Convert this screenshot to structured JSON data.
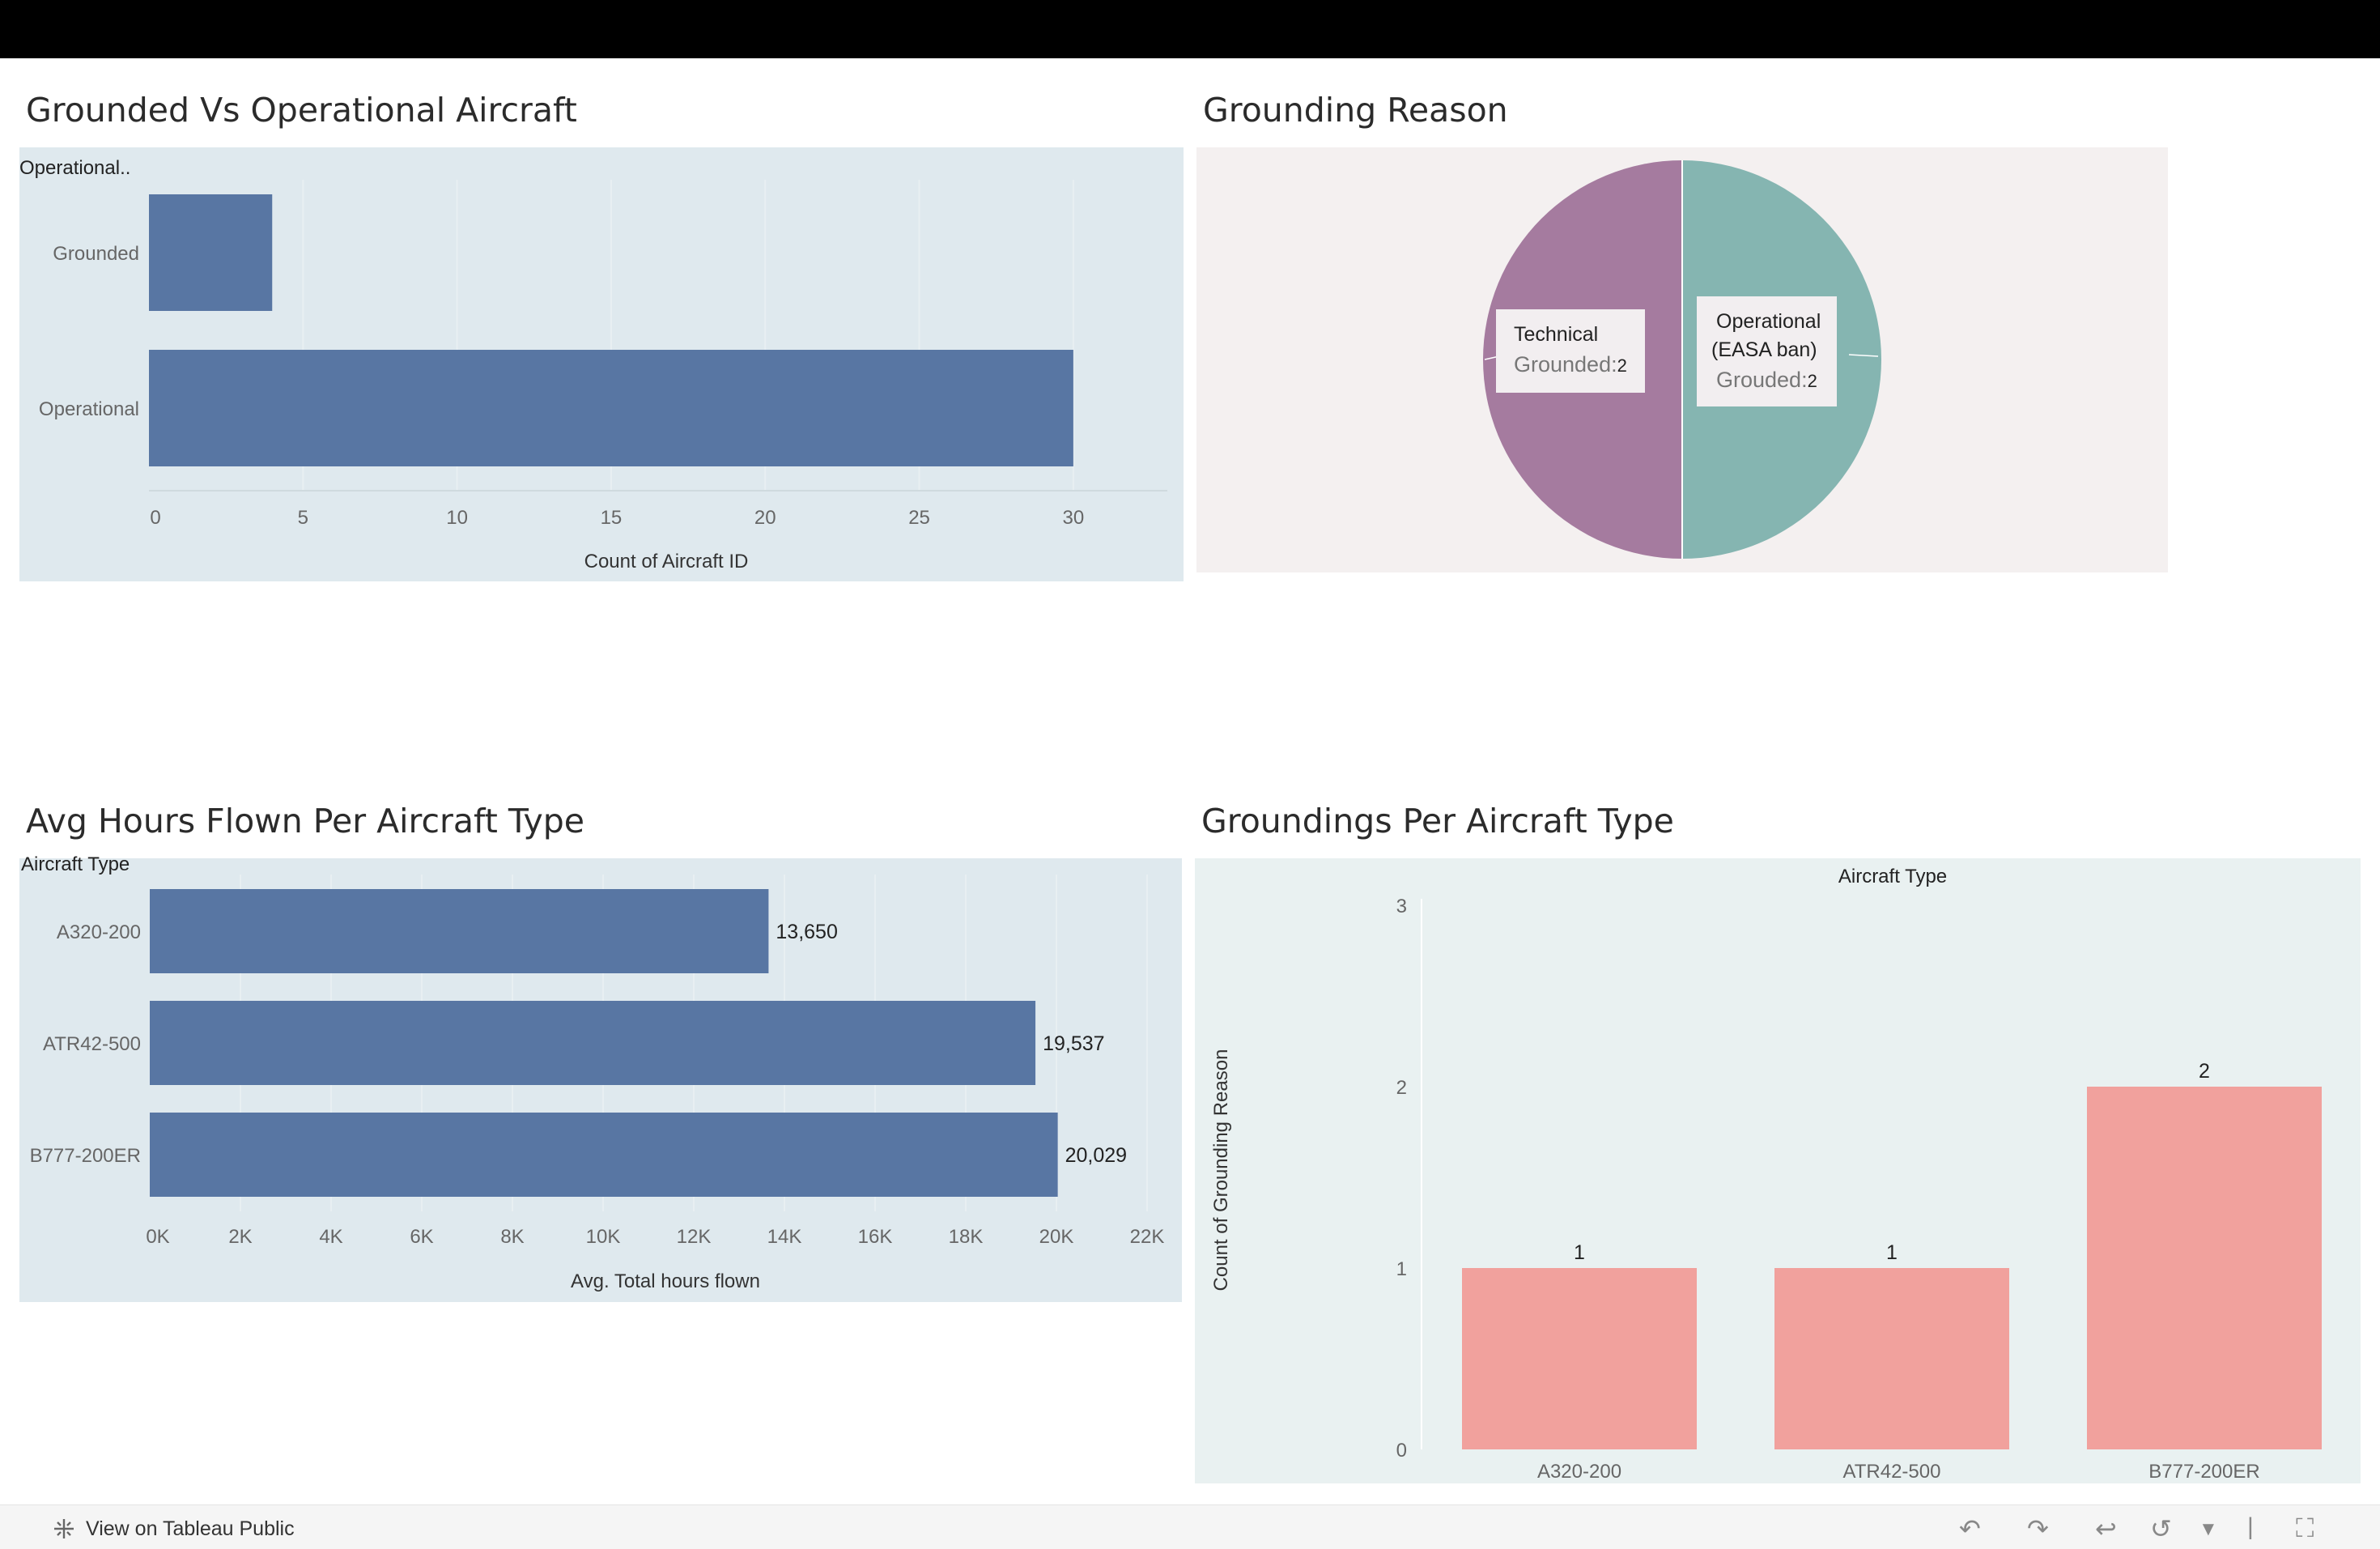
{
  "titles": {
    "p1": "Grounded Vs Operational Aircraft",
    "p2": "Grounding Reason",
    "p3": "Avg Hours Flown Per Aircraft Type",
    "p4": "Groundings Per Aircraft Type"
  },
  "colors": {
    "blue_bar": "#5876a3",
    "panel_blue_bg": "#dfe9ee",
    "pink_bar": "#f1a19d",
    "panel_green_bg": "#e9f1f1",
    "pie_bg": "#f4f0f0",
    "pie_technical": "#a57b9f",
    "pie_operational": "#85b5b1"
  },
  "chart_data": [
    {
      "type": "bar",
      "orientation": "horizontal",
      "row_header": "Operational..",
      "categories": [
        "Grounded",
        "Operational"
      ],
      "values": [
        4,
        30
      ],
      "xlabel": "Count of Aircraft ID",
      "xlim": [
        0,
        32
      ],
      "xticks": [
        "0",
        "5",
        "10",
        "15",
        "20",
        "25",
        "30"
      ],
      "xtick_values": [
        0,
        5,
        10,
        15,
        20,
        25,
        30
      ]
    },
    {
      "type": "pie",
      "slices": [
        {
          "name": "Technical",
          "label": "Grounded:",
          "value": 2
        },
        {
          "name": "Operational (EASA ban)",
          "name_lines": [
            "Operational",
            "(EASA ban)"
          ],
          "label": "Grouded:",
          "value": 2
        }
      ]
    },
    {
      "type": "bar",
      "orientation": "horizontal",
      "row_header": "Aircraft Type",
      "categories": [
        "A320-200",
        "ATR42-500",
        "B777-200ER"
      ],
      "values": [
        13650,
        19537,
        20029
      ],
      "value_labels": [
        "13,650",
        "19,537",
        "20,029"
      ],
      "xlabel": "Avg. Total hours flown",
      "xlim": [
        0,
        22500
      ],
      "xticks": [
        "0K",
        "2K",
        "4K",
        "6K",
        "8K",
        "10K",
        "12K",
        "14K",
        "16K",
        "18K",
        "20K",
        "22K"
      ],
      "xtick_values": [
        0,
        2000,
        4000,
        6000,
        8000,
        10000,
        12000,
        14000,
        16000,
        18000,
        20000,
        22000
      ]
    },
    {
      "type": "bar",
      "orientation": "vertical",
      "column_header": "Aircraft Type",
      "categories": [
        "A320-200",
        "ATR42-500",
        "B777-200ER"
      ],
      "values": [
        1,
        1,
        2
      ],
      "value_labels": [
        "1",
        "1",
        "2"
      ],
      "ylabel": "Count of Grounding Reason",
      "ylim": [
        0,
        3
      ],
      "yticks": [
        "0",
        "1",
        "2",
        "3"
      ],
      "ytick_values": [
        0,
        1,
        2,
        3
      ]
    }
  ],
  "footer": {
    "view_link": "View on Tableau Public",
    "brand_icon": "tableau-logo-icon",
    "controls": [
      "undo-icon",
      "redo-icon",
      "revert-icon",
      "refresh-icon",
      "dropdown-icon",
      "fullscreen-icon"
    ]
  }
}
